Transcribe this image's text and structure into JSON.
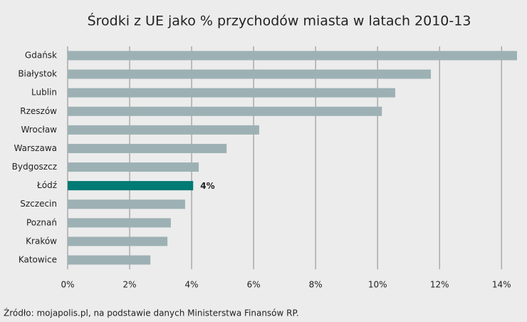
{
  "chart_data": {
    "type": "hbar",
    "title": "Środki z UE jako % przychodów miasta w latach 2010-13",
    "categories": [
      "Gdańsk",
      "Białystok",
      "Lublin",
      "Rzeszów",
      "Wrocław",
      "Warszawa",
      "Bydgoszcz",
      "Łódź",
      "Szczecin",
      "Poznań",
      "Kraków",
      "Katowice"
    ],
    "values": [
      14.5,
      11.72,
      10.57,
      10.14,
      6.18,
      5.13,
      4.23,
      4.05,
      3.79,
      3.33,
      3.22,
      2.67
    ],
    "value_labels": [
      null,
      null,
      null,
      null,
      null,
      null,
      null,
      "4%",
      null,
      null,
      null,
      null
    ],
    "colors": [
      "#9db1b4",
      "#9db1b4",
      "#9db1b4",
      "#9db1b4",
      "#9db1b4",
      "#9db1b4",
      "#9db1b4",
      "#007a74",
      "#9db1b4",
      "#9db1b4",
      "#9db1b4",
      "#9db1b4"
    ],
    "xlim": [
      0,
      14.5
    ],
    "xticks": [
      {
        "value": 0,
        "label": "0%"
      },
      {
        "value": 2,
        "label": "2%"
      },
      {
        "value": 4,
        "label": "4%"
      },
      {
        "value": 6,
        "label": "6%"
      },
      {
        "value": 8,
        "label": "8%"
      },
      {
        "value": 10,
        "label": "10%"
      },
      {
        "value": 12,
        "label": "12%"
      },
      {
        "value": 14,
        "label": "14%"
      }
    ],
    "grid": true,
    "source": "Źródło: mojapolis.pl, na podstawie danych Ministerstwa Finansów RP."
  }
}
